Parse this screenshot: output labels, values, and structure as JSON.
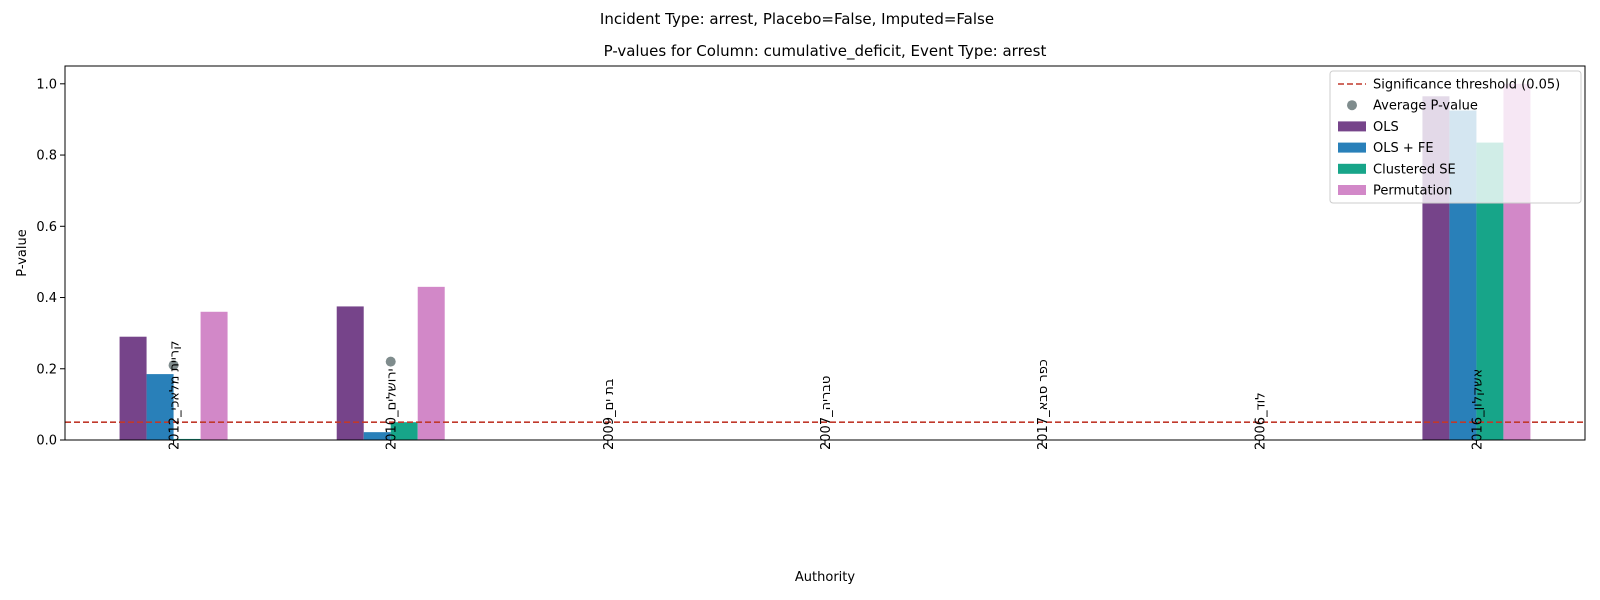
{
  "figure": {
    "suptitle": "Incident Type: arrest, Placebo=False, Imputed=False"
  },
  "chart_data": {
    "type": "bar",
    "title": "P-values for Column: cumulative_deficit, Event Type: arrest",
    "xlabel": "Authority",
    "ylabel": "P-value",
    "ylim": [
      0,
      1.05
    ],
    "yticks": [
      "0.0",
      "0.2",
      "0.4",
      "0.6",
      "0.8",
      "1.0"
    ],
    "categories": [
      "קריית מלאכי_2012",
      "ירושלים_2010",
      "בת ים_2009",
      "טבריה_2007",
      "כפר סבא_2017",
      "לוד_2006",
      "אשקלון_2016"
    ],
    "series": [
      {
        "name": "OLS",
        "color": "#76448a",
        "values": [
          0.29,
          0.375,
          null,
          null,
          null,
          null,
          0.965
        ]
      },
      {
        "name": "OLS + FE",
        "color": "#2980b9",
        "values": [
          0.185,
          0.022,
          null,
          null,
          null,
          null,
          0.925
        ]
      },
      {
        "name": "Clustered SE",
        "color": "#17a589",
        "values": [
          0.003,
          0.05,
          null,
          null,
          null,
          null,
          0.835
        ]
      },
      {
        "name": "Permutation",
        "color": "#d288c8",
        "values": [
          0.36,
          0.43,
          null,
          null,
          null,
          null,
          1.0
        ]
      }
    ],
    "average_pvalue": {
      "name": "Average P-value",
      "color": "#7f8c8d",
      "values": [
        0.21,
        0.22,
        null,
        null,
        null,
        null,
        null
      ]
    },
    "threshold": {
      "name": "Significance threshold (0.05)",
      "value": 0.05,
      "color": "#c0392b"
    },
    "legend_position": "top-right",
    "grid": false
  }
}
